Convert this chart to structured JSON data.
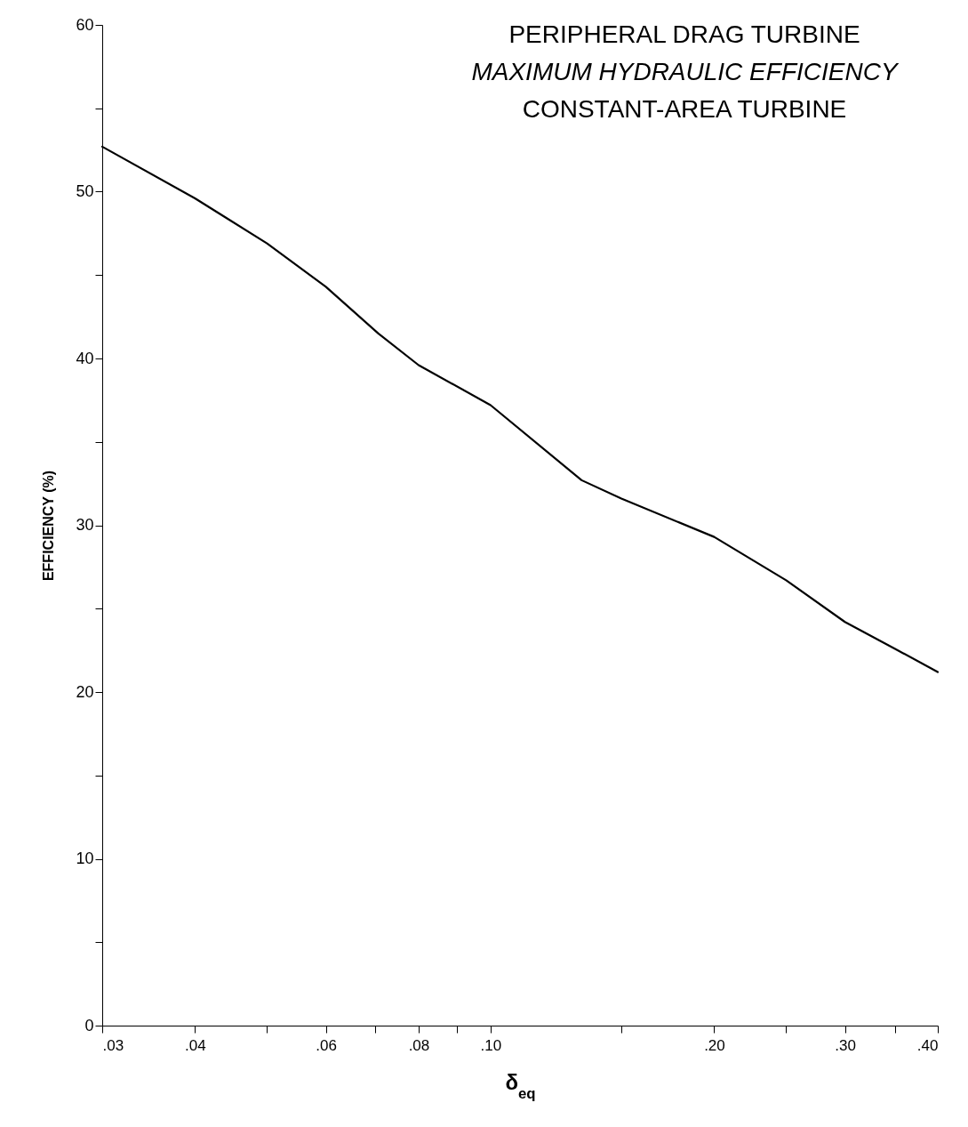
{
  "chart_data": {
    "type": "line",
    "title": "PERIPHERAL DRAG TURBINE",
    "subtitle": "MAXIMUM HYDRAULIC EFFICIENCY",
    "annotations": [
      "CONSTANT-AREA TURBINE"
    ],
    "xlabel": "δ$_{eq}$",
    "ylabel": "EFFICIENCY (%)",
    "log": "x",
    "x": [
      0.03,
      0.04,
      0.05,
      0.06,
      0.0706,
      0.08,
      0.1,
      0.1326,
      0.15,
      0.2,
      0.25,
      0.3,
      0.35,
      0.4
    ],
    "series": [
      {
        "color": "#000000",
        "values": [
          52.7,
          49.6,
          46.9,
          44.3,
          41.5,
          39.6,
          37.2,
          32.7,
          31.6,
          29.3,
          26.7,
          24.2,
          22.6,
          21.2
        ]
      }
    ],
    "xlim": [
      0.03,
      0.4
    ],
    "xticks": [
      {
        "value": 0.03,
        "label": ".03"
      },
      {
        "value": 0.04,
        "label": ".04"
      },
      {
        "value": 0.05,
        "label": null
      },
      {
        "value": 0.06,
        "label": ".06"
      },
      {
        "value": 0.07,
        "label": null
      },
      {
        "value": 0.08,
        "label": ".08"
      },
      {
        "value": 0.09,
        "label": null
      },
      {
        "value": 0.1,
        "label": ".10"
      },
      {
        "value": 0.15,
        "label": null
      },
      {
        "value": 0.2,
        "label": ".20"
      },
      {
        "value": 0.25,
        "label": null
      },
      {
        "value": 0.3,
        "label": ".30"
      },
      {
        "value": 0.35,
        "label": null
      },
      {
        "value": 0.4,
        "label": ".40"
      }
    ],
    "ylim": [
      0,
      60
    ],
    "yticks": [
      0,
      {
        "value": 5,
        "label": null
      },
      10,
      {
        "value": 15,
        "label": null
      },
      20,
      {
        "value": 25,
        "label": null
      },
      30,
      {
        "value": 35,
        "label": null
      },
      40,
      {
        "value": 45,
        "label": null
      },
      50,
      {
        "value": 55,
        "label": null
      },
      60
    ],
    "grid": false,
    "marker": "none",
    "line_style": "solid"
  }
}
